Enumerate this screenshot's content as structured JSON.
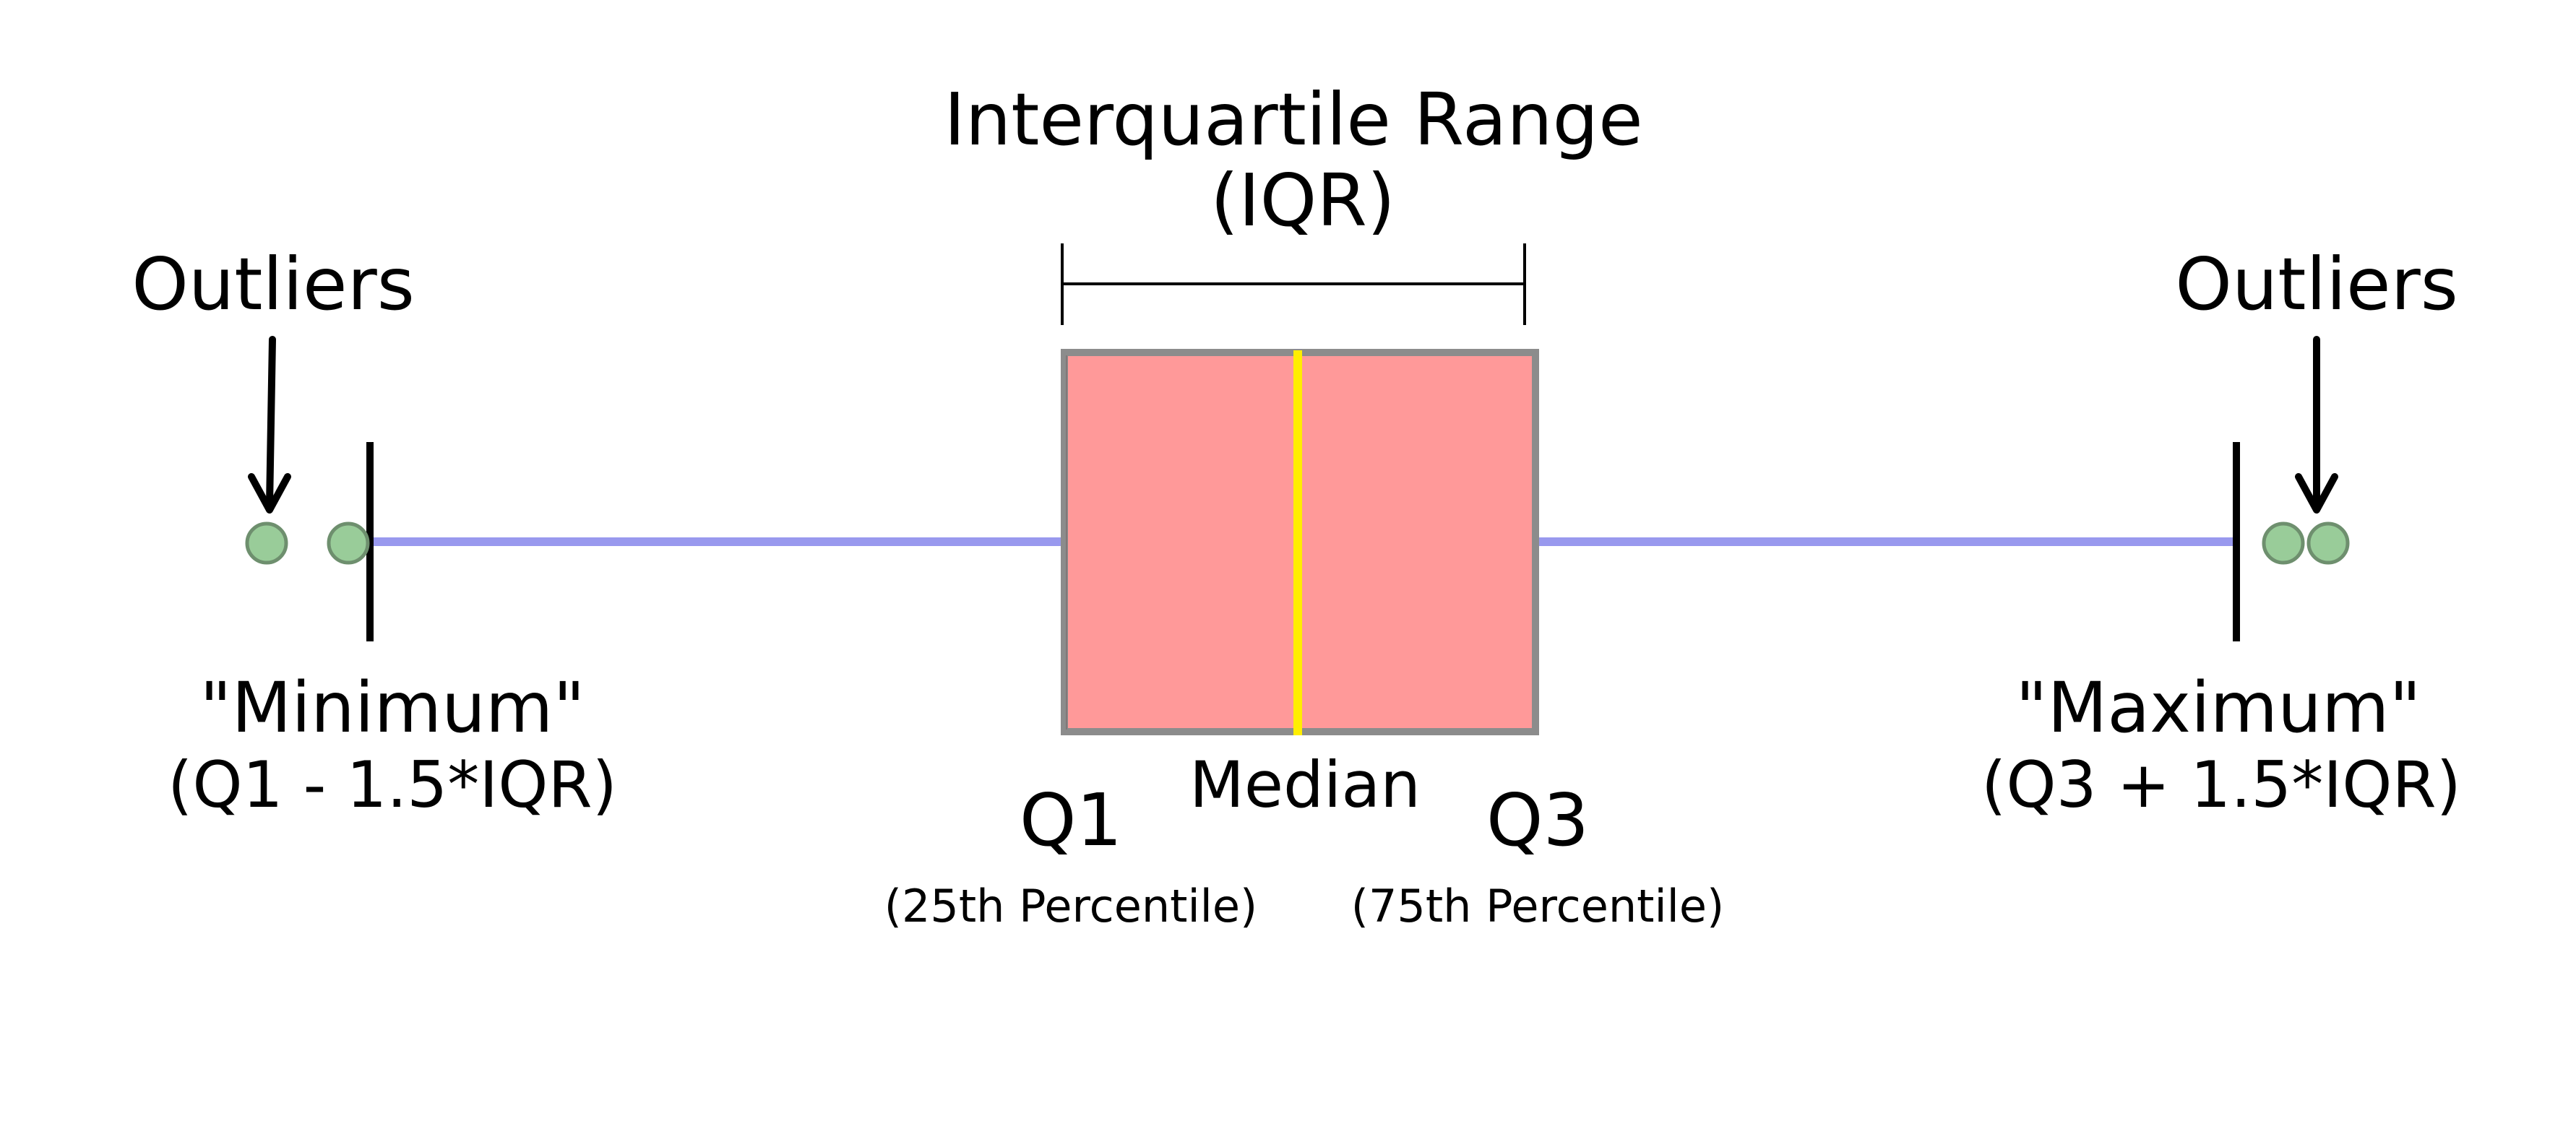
{
  "iqr_title_line1": "Interquartile Range",
  "iqr_title_line2": "(IQR)",
  "outliers_left_label": "Outliers",
  "outliers_right_label": "Outliers",
  "minimum_label": "\"Minimum\"",
  "minimum_formula": "(Q1 - 1.5*IQR)",
  "maximum_label": "\"Maximum\"",
  "maximum_formula": "(Q3 + 1.5*IQR)",
  "q1_label": "Q1",
  "q1_sublabel": "(25th Percentile)",
  "median_label": "Median",
  "q3_label": "Q3",
  "q3_sublabel": "(75th Percentile)",
  "colors": {
    "box_fill": "#ff9999",
    "box_border": "#8c8c8c",
    "median_line": "#ffee00",
    "whisker_line": "#9999ee",
    "outlier_fill": "#99cc99",
    "outlier_border": "#6e8f6e",
    "ink": "#000000"
  }
}
